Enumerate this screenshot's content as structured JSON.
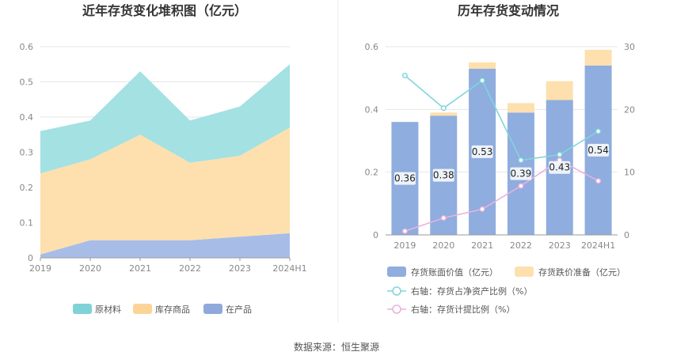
{
  "source_text": "数据来源：恒生聚源",
  "chart_data": [
    {
      "type": "area",
      "stacked": true,
      "title": "近年存货变化堆积图（亿元）",
      "categories": [
        "2019",
        "2020",
        "2021",
        "2022",
        "2023",
        "2024H1"
      ],
      "ylim": [
        0,
        0.6
      ],
      "yticks": [
        "0",
        "0.1",
        "0.2",
        "0.3",
        "0.4",
        "0.5",
        "0.6"
      ],
      "grid": true,
      "legend_position": "bottom",
      "series": [
        {
          "name": "在产品",
          "values": [
            0.01,
            0.05,
            0.05,
            0.05,
            0.06,
            0.07
          ],
          "color": "#a7bde8"
        },
        {
          "name": "库存商品",
          "values": [
            0.23,
            0.23,
            0.3,
            0.22,
            0.23,
            0.3
          ],
          "color": "#fde0ad"
        },
        {
          "name": "原材料",
          "values": [
            0.12,
            0.11,
            0.18,
            0.12,
            0.14,
            0.18
          ],
          "color": "#a3e1e3"
        }
      ],
      "legend_order": [
        "原材料",
        "库存商品",
        "在产品"
      ],
      "legend_colors": [
        "#7fd3d6",
        "#fcd596",
        "#8fa9dc"
      ]
    },
    {
      "type": "bar",
      "stacked": true,
      "title": "历年存货变动情况",
      "categories": [
        "2019",
        "2020",
        "2021",
        "2022",
        "2023",
        "2024H1"
      ],
      "ylim": [
        0,
        0.6
      ],
      "yticks": [
        "0",
        "0.2",
        "0.4",
        "0.6"
      ],
      "y2lim": [
        0,
        30
      ],
      "y2ticks": [
        "0",
        "10",
        "20",
        "30"
      ],
      "grid": true,
      "legend_position": "bottom",
      "series": [
        {
          "name": "存货账面价值（亿元）",
          "values": [
            0.36,
            0.38,
            0.53,
            0.39,
            0.43,
            0.54
          ],
          "labels": [
            "0.36",
            "0.38",
            "0.53",
            "0.39",
            "0.43",
            "0.54"
          ],
          "color": "#8fadde"
        },
        {
          "name": "存货跌价准备（亿元）",
          "values": [
            0,
            0.01,
            0.02,
            0.03,
            0.06,
            0.05
          ],
          "color": "#fde0ad"
        }
      ],
      "lines": [
        {
          "name": "右轴：存货占净资产比例（%）",
          "axis": "right",
          "values": [
            25.4,
            20.2,
            24.6,
            11.9,
            12.8,
            16.5
          ],
          "color": "#7fd6da"
        },
        {
          "name": "右轴：存货计提比例（%）",
          "axis": "right",
          "values": [
            0.6,
            2.7,
            4.1,
            7.8,
            11.9,
            8.6
          ],
          "color": "#eab1de"
        }
      ]
    }
  ]
}
